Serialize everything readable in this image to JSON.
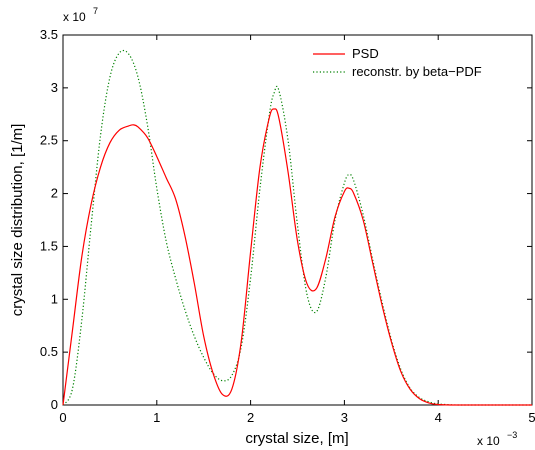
{
  "chart_data": {
    "type": "line",
    "xlabel": "crystal size, [m]",
    "ylabel": "crystal size distribution, [1/m]",
    "x_multiplier": {
      "base": "x 10",
      "exponent": "−3"
    },
    "y_multiplier": {
      "base": "x 10",
      "exponent": "7"
    },
    "xlim": [
      0,
      5
    ],
    "ylim": [
      0,
      3.5
    ],
    "x_ticks": [
      0,
      1,
      2,
      3,
      4,
      5
    ],
    "x_tick_labels": [
      "0",
      "1",
      "2",
      "3",
      "4",
      "5"
    ],
    "y_ticks": [
      0,
      0.5,
      1,
      1.5,
      2,
      2.5,
      3,
      3.5
    ],
    "y_tick_labels": [
      "0",
      "0.5",
      "1",
      "1.5",
      "2",
      "2.5",
      "3",
      "3.5"
    ],
    "grid": false,
    "legend_position": "top-right",
    "series": [
      {
        "name": "PSD",
        "color": "#ff0000",
        "style": "solid",
        "x": [
          0,
          0.1,
          0.2,
          0.3,
          0.4,
          0.5,
          0.6,
          0.7,
          0.75,
          0.8,
          0.9,
          1.0,
          1.1,
          1.2,
          1.3,
          1.4,
          1.5,
          1.6,
          1.7,
          1.8,
          1.9,
          2.0,
          2.1,
          2.2,
          2.25,
          2.3,
          2.4,
          2.5,
          2.6,
          2.7,
          2.8,
          2.9,
          3.0,
          3.05,
          3.1,
          3.2,
          3.3,
          3.4,
          3.5,
          3.6,
          3.7,
          3.8,
          3.9,
          4.0,
          4.2,
          4.5,
          5.0
        ],
        "y": [
          0,
          0.7,
          1.4,
          1.9,
          2.25,
          2.48,
          2.6,
          2.64,
          2.65,
          2.63,
          2.53,
          2.35,
          2.15,
          1.95,
          1.6,
          1.15,
          0.65,
          0.3,
          0.1,
          0.15,
          0.6,
          1.45,
          2.25,
          2.72,
          2.8,
          2.72,
          2.2,
          1.55,
          1.15,
          1.1,
          1.38,
          1.78,
          2.02,
          2.05,
          2.0,
          1.75,
          1.35,
          0.95,
          0.6,
          0.32,
          0.15,
          0.06,
          0.02,
          0.005,
          0,
          0,
          0
        ]
      },
      {
        "name": "reconstr. by beta−PDF",
        "color": "#008000",
        "style": "dotted",
        "x": [
          0,
          0.1,
          0.2,
          0.3,
          0.4,
          0.5,
          0.6,
          0.7,
          0.8,
          0.9,
          1.0,
          1.1,
          1.2,
          1.3,
          1.4,
          1.5,
          1.6,
          1.7,
          1.8,
          1.9,
          2.0,
          2.1,
          2.2,
          2.25,
          2.3,
          2.4,
          2.5,
          2.6,
          2.7,
          2.8,
          2.9,
          3.0,
          3.05,
          3.1,
          3.2,
          3.3,
          3.4,
          3.5,
          3.6,
          3.7,
          3.8,
          3.9,
          4.0,
          4.2,
          4.5,
          5.0
        ],
        "y": [
          0,
          0.15,
          0.8,
          1.7,
          2.55,
          3.1,
          3.33,
          3.32,
          3.1,
          2.65,
          2.05,
          1.55,
          1.2,
          0.9,
          0.65,
          0.45,
          0.3,
          0.23,
          0.28,
          0.55,
          1.2,
          2.05,
          2.75,
          2.95,
          2.98,
          2.5,
          1.7,
          1.05,
          0.88,
          1.2,
          1.75,
          2.1,
          2.18,
          2.12,
          1.8,
          1.38,
          0.98,
          0.62,
          0.34,
          0.16,
          0.07,
          0.03,
          0.01,
          0,
          0,
          0
        ]
      }
    ]
  }
}
